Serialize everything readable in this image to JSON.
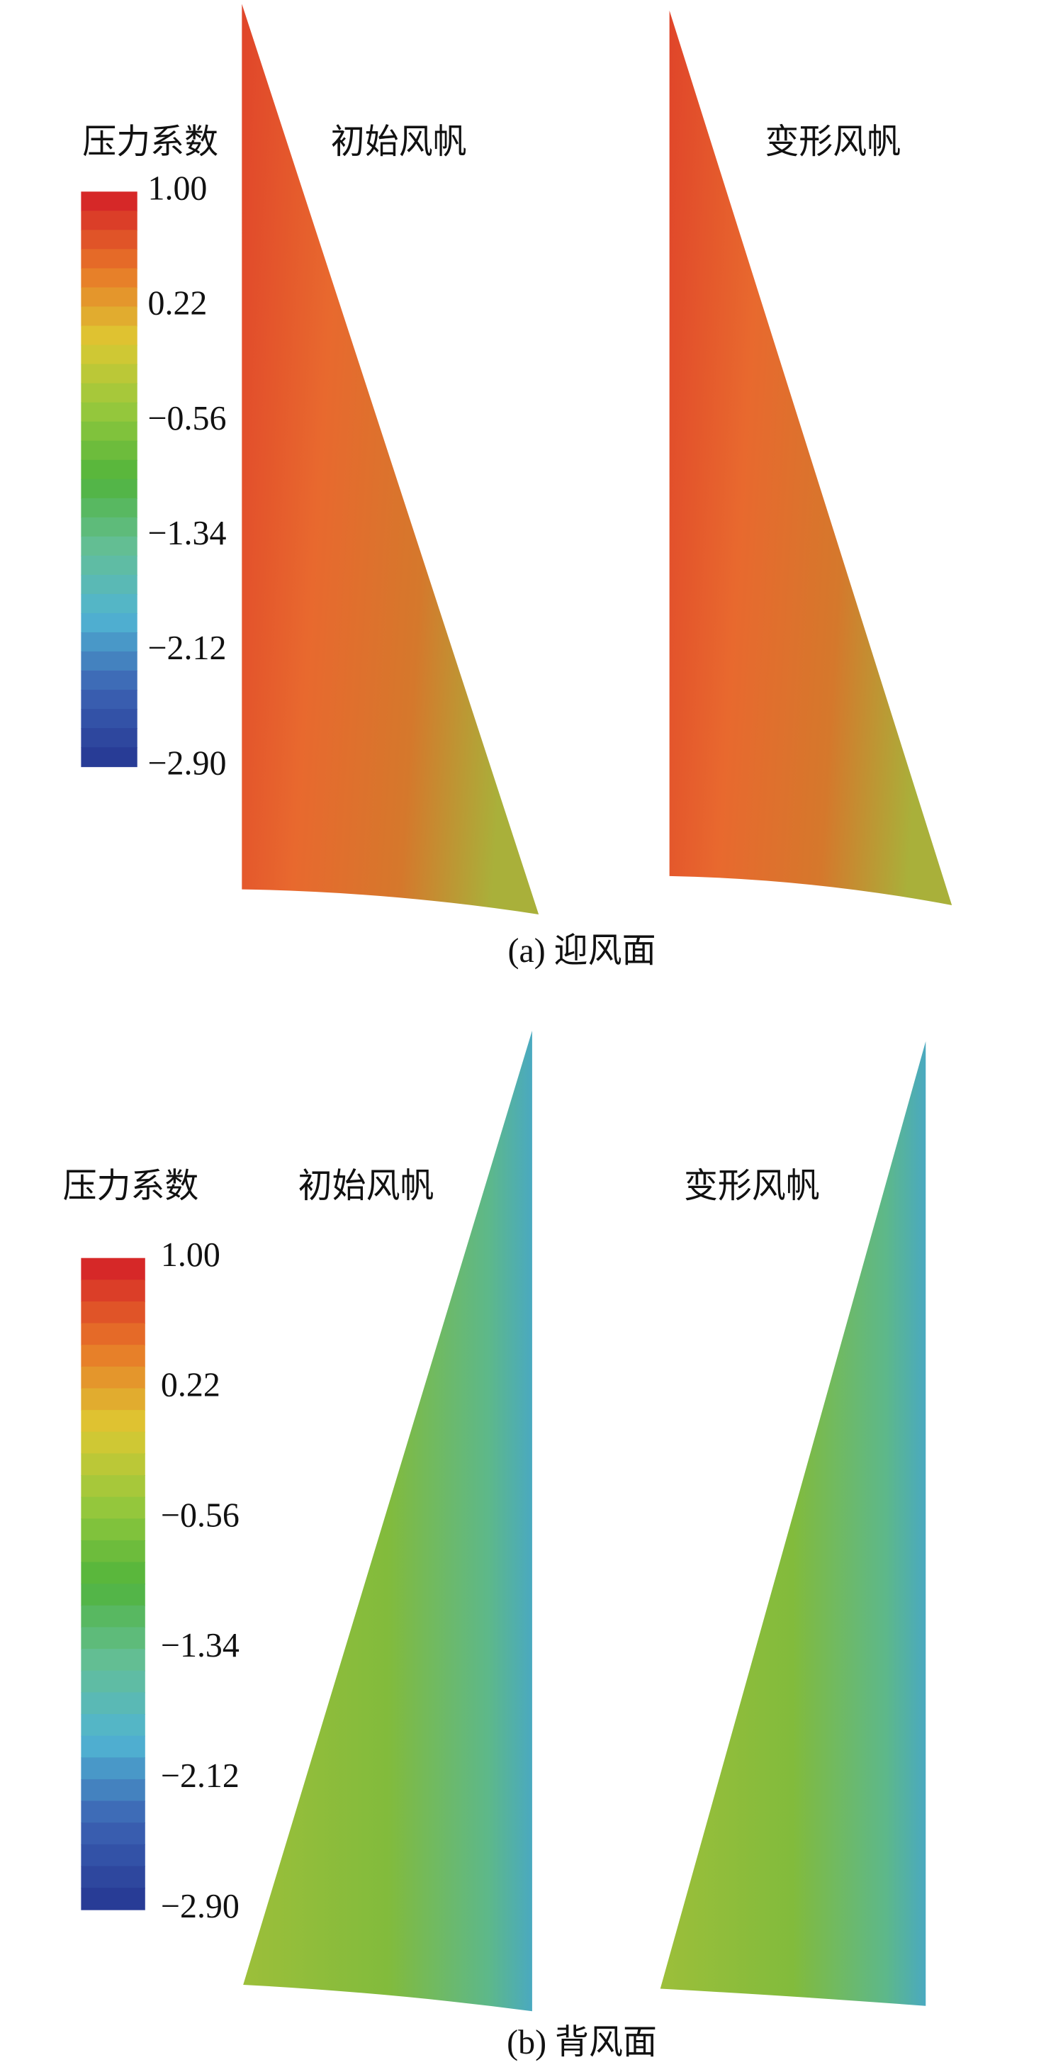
{
  "panels": [
    {
      "legend_title": "压力系数",
      "colorbar_ticks": [
        "1.00",
        "0.22",
        "−0.56",
        "−1.34",
        "−2.12",
        "−2.90"
      ],
      "titles": [
        "初始风帆",
        "变形风帆"
      ],
      "caption": "(a) 迎风面"
    },
    {
      "legend_title": "压力系数",
      "colorbar_ticks": [
        "1.00",
        "0.22",
        "−0.56",
        "−1.34",
        "−2.12",
        "−2.90"
      ],
      "titles": [
        "初始风帆",
        "变形风帆"
      ],
      "caption": "(b) 背风面"
    }
  ]
}
